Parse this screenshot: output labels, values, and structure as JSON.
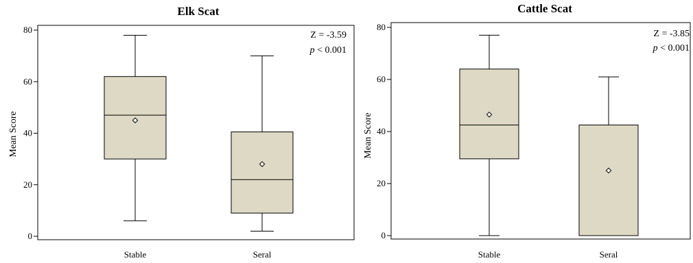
{
  "chart_data": [
    {
      "type": "boxplot",
      "title": "Elk Scat",
      "ylabel": "Mean Score",
      "xlabel": "",
      "ylim": [
        0,
        80
      ],
      "yticks": [
        0,
        20,
        40,
        60,
        80
      ],
      "categories": [
        "Stable",
        "Seral"
      ],
      "boxes": [
        {
          "name": "Stable",
          "min": 6,
          "q1": 30,
          "median": 47,
          "q3": 62,
          "max": 78,
          "mean": 45
        },
        {
          "name": "Seral",
          "min": 2,
          "q1": 9,
          "median": 22,
          "q3": 40.5,
          "max": 70,
          "mean": 28
        }
      ],
      "stat_z": "Z = -3.59",
      "stat_p_symbol": "p",
      "stat_p_value": "< 0.001",
      "box_color": "#ddd9c4",
      "grid": false
    },
    {
      "type": "boxplot",
      "title": "Cattle Scat",
      "ylabel": "Mean Score",
      "xlabel": "",
      "ylim": [
        0,
        80
      ],
      "yticks": [
        0,
        20,
        40,
        60,
        80
      ],
      "categories": [
        "Stable",
        "Seral"
      ],
      "boxes": [
        {
          "name": "Stable",
          "min": 0,
          "q1": 29.5,
          "median": 42.5,
          "q3": 64,
          "max": 77,
          "mean": 46.5
        },
        {
          "name": "Seral",
          "min": 0,
          "q1": 0,
          "median": 42.5,
          "q3": 42.5,
          "max": 61,
          "mean": 25
        }
      ],
      "stat_z": "Z = -3.85",
      "stat_p_symbol": "p",
      "stat_p_value": "< 0.001",
      "box_color": "#ddd9c4",
      "grid": false
    }
  ]
}
